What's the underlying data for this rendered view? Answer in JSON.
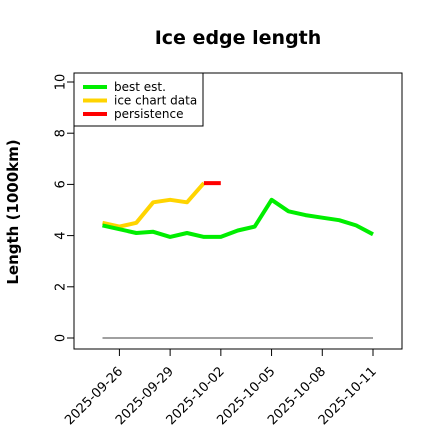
{
  "chart_data": {
    "type": "line",
    "title": "Ice edge length",
    "ylabel": "Length (1000km)",
    "xlabel": "",
    "x_categories": [
      "2025-09-26",
      "2025-09-29",
      "2025-10-02",
      "2025-10-05",
      "2025-10-08",
      "2025-10-11"
    ],
    "ylim": [
      0,
      10
    ],
    "yticks": [
      0,
      2,
      4,
      6,
      8,
      10
    ],
    "legend_position": "top-left",
    "series": [
      {
        "name": "best est.",
        "color": "#00ee00",
        "points": [
          {
            "x": "2025-09-25",
            "y": 4.4
          },
          {
            "x": "2025-09-26",
            "y": 4.25
          },
          {
            "x": "2025-09-27",
            "y": 4.1
          },
          {
            "x": "2025-09-28",
            "y": 4.15
          },
          {
            "x": "2025-09-29",
            "y": 3.95
          },
          {
            "x": "2025-09-30",
            "y": 4.1
          },
          {
            "x": "2025-10-01",
            "y": 3.95
          },
          {
            "x": "2025-10-02",
            "y": 3.95
          },
          {
            "x": "2025-10-03",
            "y": 4.2
          },
          {
            "x": "2025-10-04",
            "y": 4.35
          },
          {
            "x": "2025-10-05",
            "y": 5.4
          },
          {
            "x": "2025-10-06",
            "y": 4.95
          },
          {
            "x": "2025-10-07",
            "y": 4.8
          },
          {
            "x": "2025-10-08",
            "y": 4.7
          },
          {
            "x": "2025-10-09",
            "y": 4.6
          },
          {
            "x": "2025-10-10",
            "y": 4.4
          },
          {
            "x": "2025-10-11",
            "y": 4.05
          }
        ]
      },
      {
        "name": "ice chart data",
        "color": "#ffd400",
        "points": [
          {
            "x": "2025-09-25",
            "y": 4.5
          },
          {
            "x": "2025-09-26",
            "y": 4.35
          },
          {
            "x": "2025-09-27",
            "y": 4.5
          },
          {
            "x": "2025-09-28",
            "y": 5.3
          },
          {
            "x": "2025-09-29",
            "y": 5.4
          },
          {
            "x": "2025-09-30",
            "y": 5.3
          },
          {
            "x": "2025-10-01",
            "y": 6.05
          }
        ]
      },
      {
        "name": "persistence",
        "color": "#ff0000",
        "points": [
          {
            "x": "2025-10-01",
            "y": 6.05
          },
          {
            "x": "2025-10-02",
            "y": 6.05
          }
        ]
      },
      {
        "name": "",
        "color": "#808080",
        "points": [
          {
            "x": "2025-09-25",
            "y": 0
          },
          {
            "x": "2025-10-11",
            "y": 0
          }
        ]
      }
    ]
  }
}
